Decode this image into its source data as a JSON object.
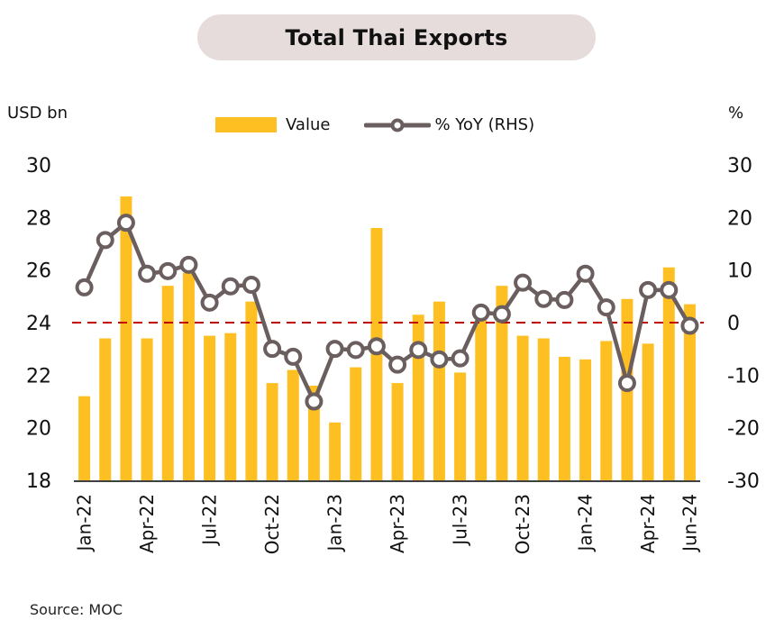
{
  "header": {
    "title": "Total Thai Exports",
    "left_unit": "USD bn",
    "right_unit": "%"
  },
  "legend": {
    "value_label": "Value",
    "yoy_label": "% YoY (RHS)"
  },
  "footer": {
    "source": "Source:  MOC"
  },
  "colors": {
    "bar": "#fdbf22",
    "line": "#6b5e5e",
    "zero_line": "#c00000",
    "axis": "#404040",
    "title_bg": "#e6dcdc"
  },
  "chart_data": {
    "type": "bar+line",
    "title": "Total Thai Exports",
    "xlabel": "",
    "ylabel": "USD bn",
    "y2label": "%",
    "ylim": [
      18,
      30
    ],
    "y2lim": [
      -30,
      30
    ],
    "yticks": [
      18,
      20,
      22,
      24,
      26,
      28,
      30
    ],
    "y2ticks": [
      -30,
      -20,
      -10,
      0,
      10,
      20,
      30
    ],
    "legend_position": "top-center",
    "grid": false,
    "reference_line": {
      "axis": "y2",
      "value": 0,
      "style": "dashed"
    },
    "categories": [
      "Jan-22",
      "Feb-22",
      "Mar-22",
      "Apr-22",
      "May-22",
      "Jun-22",
      "Jul-22",
      "Aug-22",
      "Sep-22",
      "Oct-22",
      "Nov-22",
      "Dec-22",
      "Jan-23",
      "Feb-23",
      "Mar-23",
      "Apr-23",
      "May-23",
      "Jun-23",
      "Jul-23",
      "Aug-23",
      "Sep-23",
      "Oct-23",
      "Nov-23",
      "Dec-23",
      "Jan-24",
      "Feb-24",
      "Mar-24",
      "Apr-24",
      "May-24",
      "Jun-24"
    ],
    "xtick_labels": [
      {
        "index": 0,
        "label": "Jan-22"
      },
      {
        "index": 3,
        "label": "Apr-22"
      },
      {
        "index": 6,
        "label": "Jul-22"
      },
      {
        "index": 9,
        "label": "Oct-22"
      },
      {
        "index": 12,
        "label": "Jan-23"
      },
      {
        "index": 15,
        "label": "Apr-23"
      },
      {
        "index": 18,
        "label": "Jul-23"
      },
      {
        "index": 21,
        "label": "Oct-23"
      },
      {
        "index": 24,
        "label": "Jan-24"
      },
      {
        "index": 27,
        "label": "Apr-24"
      },
      {
        "index": 29,
        "label": "Jun-24"
      }
    ],
    "series": [
      {
        "name": "Value",
        "type": "bar",
        "axis": "left",
        "values": [
          21.2,
          23.4,
          28.8,
          23.4,
          25.4,
          25.9,
          23.5,
          23.6,
          24.8,
          21.7,
          22.2,
          21.6,
          20.2,
          22.3,
          27.6,
          21.7,
          24.3,
          24.8,
          22.1,
          24.1,
          25.4,
          23.5,
          23.4,
          22.7,
          22.6,
          23.3,
          24.9,
          23.2,
          26.1,
          24.7
        ]
      },
      {
        "name": "% YoY (RHS)",
        "type": "line",
        "axis": "right",
        "values": [
          6.7,
          15.7,
          19.0,
          9.3,
          9.8,
          11.0,
          3.8,
          6.9,
          7.2,
          -5.0,
          -6.5,
          -15.0,
          -5.0,
          -5.2,
          -4.5,
          -8.0,
          -5.2,
          -7.0,
          -6.8,
          1.9,
          1.6,
          7.6,
          4.5,
          4.3,
          9.3,
          2.9,
          -11.5,
          6.2,
          6.2,
          -0.6
        ]
      }
    ]
  }
}
